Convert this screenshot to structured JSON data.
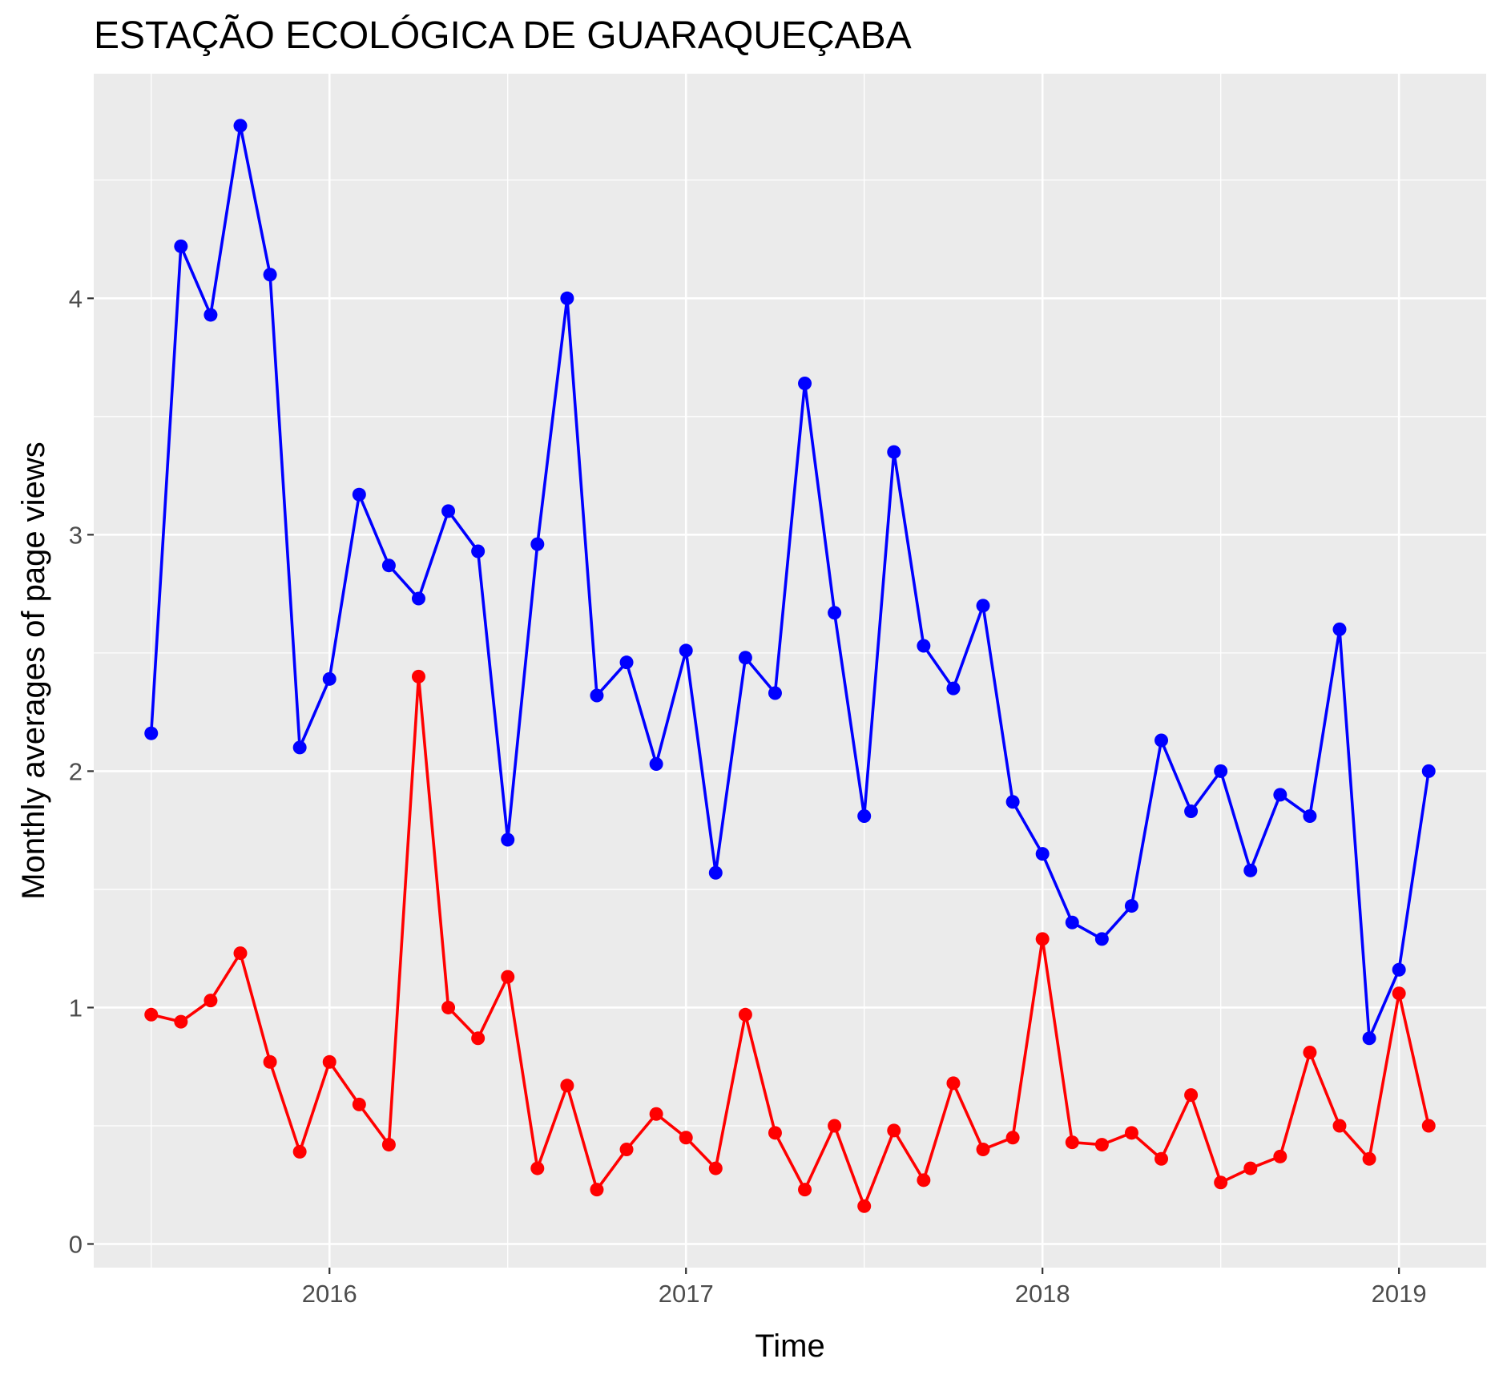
{
  "chart_data": {
    "type": "line",
    "title": "ESTAÇÃO ECOLÓGICA DE GUARAQUEÇABA",
    "xlabel": "Time",
    "ylabel": "Monthly averages of page views",
    "x_ticks": [
      "2016",
      "2017",
      "2018",
      "2019"
    ],
    "y_ticks": [
      "0",
      "1",
      "2",
      "3",
      "4"
    ],
    "x_dates": [
      "2015-07",
      "2015-08",
      "2015-09",
      "2015-10",
      "2015-11",
      "2015-12",
      "2016-01",
      "2016-02",
      "2016-03",
      "2016-04",
      "2016-05",
      "2016-06",
      "2016-07",
      "2016-08",
      "2016-09",
      "2016-10",
      "2016-11",
      "2016-12",
      "2017-01",
      "2017-02",
      "2017-03",
      "2017-04",
      "2017-05",
      "2017-06",
      "2017-07",
      "2017-08",
      "2017-09",
      "2017-10",
      "2017-11",
      "2017-12",
      "2018-01",
      "2018-02",
      "2018-03",
      "2018-04",
      "2018-05",
      "2018-06",
      "2018-07",
      "2018-08",
      "2018-09",
      "2018-10",
      "2018-11",
      "2018-12",
      "2019-01",
      "2019-02"
    ],
    "ylim": [
      -0.1,
      4.95
    ],
    "grid": true,
    "background": "#ebebeb",
    "series": [
      {
        "color": "#0000ff",
        "values": [
          2.16,
          4.22,
          3.93,
          4.73,
          4.1,
          2.1,
          2.39,
          3.17,
          2.87,
          2.73,
          3.1,
          2.93,
          1.71,
          2.96,
          4.0,
          2.32,
          2.46,
          2.03,
          2.51,
          1.57,
          2.48,
          2.33,
          3.64,
          2.67,
          1.81,
          3.35,
          2.53,
          2.35,
          2.7,
          1.87,
          1.65,
          1.36,
          1.29,
          1.43,
          2.13,
          1.83,
          2.0,
          1.58,
          1.9,
          1.81,
          2.6,
          0.87,
          1.16,
          2.0
        ]
      },
      {
        "color": "#ff0000",
        "values": [
          0.97,
          0.94,
          1.03,
          1.23,
          0.77,
          0.39,
          0.77,
          0.59,
          0.42,
          2.4,
          1.0,
          0.87,
          1.13,
          0.32,
          0.67,
          0.23,
          0.4,
          0.55,
          0.45,
          0.32,
          0.97,
          0.47,
          0.23,
          0.5,
          0.16,
          0.48,
          0.27,
          0.68,
          0.4,
          0.45,
          1.29,
          0.43,
          0.42,
          0.47,
          0.36,
          0.63,
          0.26,
          0.32,
          0.37,
          0.81,
          0.5,
          0.36,
          1.06,
          0.5
        ]
      }
    ]
  }
}
